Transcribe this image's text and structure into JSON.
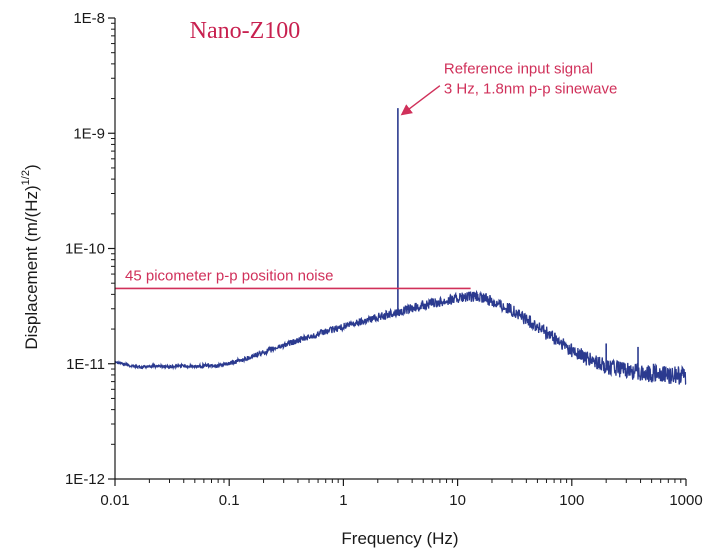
{
  "chart_data": {
    "type": "line",
    "title": "Nano-Z100",
    "xlabel": "Frequency (Hz)",
    "ylabel_main": "Displacement (m/(Hz)",
    "ylabel_sup": "1/2",
    "ylabel_end": ")",
    "x_scale": "log",
    "y_scale": "log",
    "xlim": [
      0.01,
      1000
    ],
    "ylim": [
      1e-12,
      1e-08
    ],
    "x_ticks": [
      {
        "value": 0.01,
        "label": "0.01"
      },
      {
        "value": 0.1,
        "label": "0.1"
      },
      {
        "value": 1,
        "label": "1"
      },
      {
        "value": 10,
        "label": "10"
      },
      {
        "value": 100,
        "label": "100"
      },
      {
        "value": 1000,
        "label": "1000"
      }
    ],
    "y_ticks": [
      {
        "value": 1e-12,
        "label": "1E-12"
      },
      {
        "value": 1e-11,
        "label": "1E-11"
      },
      {
        "value": 1e-10,
        "label": "1E-10"
      },
      {
        "value": 1e-09,
        "label": "1E-9"
      },
      {
        "value": 1e-08,
        "label": "1E-8"
      }
    ],
    "grid": false,
    "series": [
      {
        "color": "#2b3a8f",
        "points": [
          [
            0.01,
            1.05e-11
          ],
          [
            0.013,
            9.7e-12
          ],
          [
            0.017,
            9.3e-12
          ],
          [
            0.022,
            9.6e-12
          ],
          [
            0.03,
            9.4e-12
          ],
          [
            0.04,
            9.6e-12
          ],
          [
            0.05,
            9.4e-12
          ],
          [
            0.06,
            9.7e-12
          ],
          [
            0.08,
            9.6e-12
          ],
          [
            0.1,
            1e-11
          ],
          [
            0.13,
            1.08e-11
          ],
          [
            0.2,
            1.25e-11
          ],
          [
            0.3,
            1.45e-11
          ],
          [
            0.5,
            1.7e-11
          ],
          [
            0.7,
            1.9e-11
          ],
          [
            1,
            2.1e-11
          ],
          [
            1.5,
            2.35e-11
          ],
          [
            2,
            2.55e-11
          ],
          [
            3,
            2.8e-11
          ],
          [
            5,
            3.2e-11
          ],
          [
            7,
            3.45e-11
          ],
          [
            10,
            3.7e-11
          ],
          [
            13,
            3.8e-11
          ],
          [
            17,
            3.7e-11
          ],
          [
            20,
            3.5e-11
          ],
          [
            30,
            2.9e-11
          ],
          [
            50,
            2.1e-11
          ],
          [
            70,
            1.65e-11
          ],
          [
            100,
            1.3e-11
          ],
          [
            150,
            1.05e-11
          ],
          [
            200,
            9.5e-12
          ],
          [
            300,
            8.7e-12
          ],
          [
            500,
            8.2e-12
          ],
          [
            700,
            8e-12
          ],
          [
            1000,
            7.9e-12
          ]
        ],
        "peaks": [
          {
            "x": 3,
            "y": 1.65e-09
          },
          {
            "x": 200,
            "y": 1.5e-11
          },
          {
            "x": 380,
            "y": 1.4e-11
          },
          {
            "x": 520,
            "y": 1e-11
          }
        ]
      }
    ],
    "annotations": {
      "reference_line1": "Reference input signal",
      "reference_line2": "3 Hz, 1.8nm p-p sinewave",
      "reference_arrow_target": {
        "x": 3,
        "y": 1.6e-09
      },
      "noise_label": "45 picometer p-p position noise",
      "noise_level": 4.5e-11,
      "noise_x_range": [
        0.01,
        13
      ],
      "color": "#d0305a"
    }
  }
}
